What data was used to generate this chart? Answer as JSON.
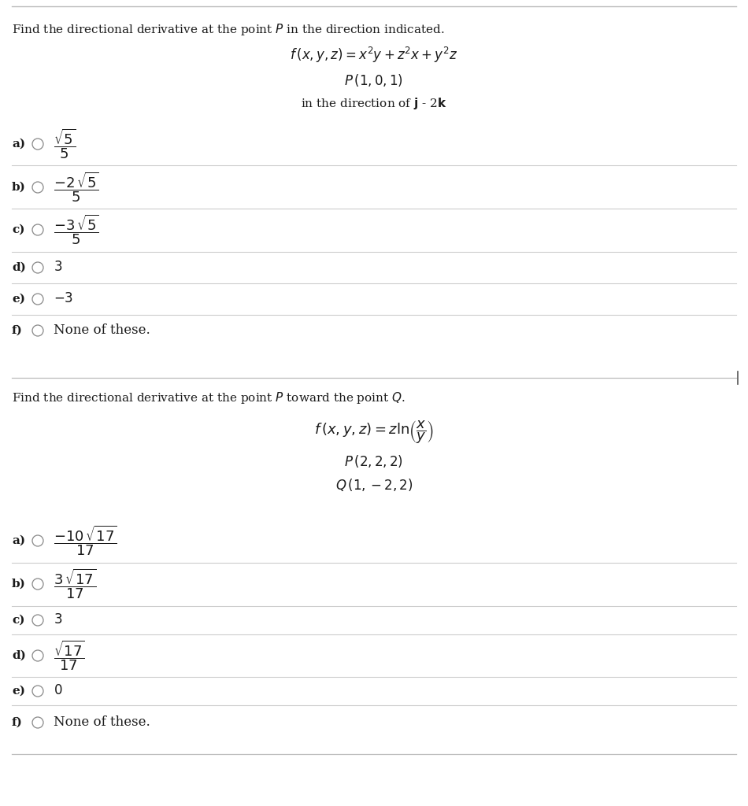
{
  "bg_color": "#ffffff",
  "text_color": "#1a1a1a",
  "section1": {
    "header": "Find the directional derivative at the point $P$ in the direction indicated.",
    "function": "$f\\,(x, y, z) = x^2y + z^2x + y^2z$",
    "point": "$P\\,(1, 0, 1)$",
    "direction": "in the direction of $\\mathbf{j}$ - 2$\\mathbf{k}$",
    "choices": [
      {
        "label": "a)",
        "math": "$\\dfrac{\\sqrt{5}}{5}$",
        "frac": true
      },
      {
        "label": "b)",
        "math": "$\\dfrac{-2\\,\\sqrt{5}}{5}$",
        "frac": true
      },
      {
        "label": "c)",
        "math": "$\\dfrac{-3\\,\\sqrt{5}}{5}$",
        "frac": true
      },
      {
        "label": "d)",
        "math": "$3$",
        "frac": false
      },
      {
        "label": "e)",
        "math": "$-3$",
        "frac": false
      },
      {
        "label": "f)",
        "math": "None of these.",
        "frac": false
      }
    ]
  },
  "section2": {
    "header": "Find the directional derivative at the point $P$ toward the point $Q$.",
    "function": "$f\\,(x, y, z) = z\\ln\\!\\left(\\dfrac{x}{y}\\right)$",
    "point_P": "$P\\,(2, 2, 2)$",
    "point_Q": "$Q\\,(1, -2, 2)$",
    "choices": [
      {
        "label": "a)",
        "math": "$\\dfrac{-10\\,\\sqrt{17}}{17}$",
        "frac": true
      },
      {
        "label": "b)",
        "math": "$\\dfrac{3\\,\\sqrt{17}}{17}$",
        "frac": true
      },
      {
        "label": "c)",
        "math": "$3$",
        "frac": false
      },
      {
        "label": "d)",
        "math": "$\\dfrac{\\sqrt{17}}{17}$",
        "frac": true
      },
      {
        "label": "e)",
        "math": "$0$",
        "frac": false
      },
      {
        "label": "f)",
        "math": "None of these.",
        "frac": false
      }
    ]
  }
}
